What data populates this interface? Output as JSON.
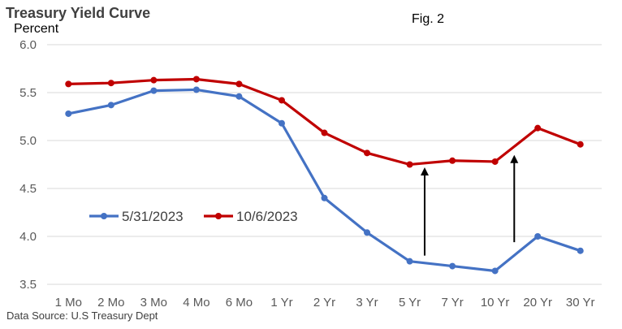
{
  "chart_data": {
    "type": "line",
    "title": "Treasury Yield Curve",
    "ylabel": "Percent",
    "xlabel": "",
    "annotation": "Fig. 2",
    "source": "Data Source: U.S Treasury Dept",
    "categories": [
      "1 Mo",
      "2 Mo",
      "3 Mo",
      "4 Mo",
      "6 Mo",
      "1 Yr",
      "2 Yr",
      "3 Yr",
      "5 Yr",
      "7 Yr",
      "10 Yr",
      "20 Yr",
      "30 Yr"
    ],
    "ylim": [
      3.5,
      6.0
    ],
    "yticks": [
      "3.5",
      "4.0",
      "4.5",
      "5.0",
      "5.5",
      "6.0"
    ],
    "grid": true,
    "legend_position": "left-middle",
    "series": [
      {
        "name": "5/31/2023",
        "color": "#4472C4",
        "values": [
          5.28,
          5.37,
          5.52,
          5.53,
          5.46,
          5.18,
          4.4,
          4.04,
          3.74,
          3.69,
          3.64,
          4.0,
          3.85
        ]
      },
      {
        "name": "10/6/2023",
        "color": "#C00000",
        "values": [
          5.59,
          5.6,
          5.63,
          5.64,
          5.59,
          5.42,
          5.08,
          4.87,
          4.75,
          4.79,
          4.78,
          5.13,
          4.96
        ]
      }
    ],
    "arrows": [
      {
        "x_category": "5 Yr",
        "from": 3.8,
        "to": 4.72,
        "offset": 0.35
      },
      {
        "x_category": "10 Yr",
        "from": 3.94,
        "to": 4.85,
        "offset": 0.45
      }
    ]
  }
}
